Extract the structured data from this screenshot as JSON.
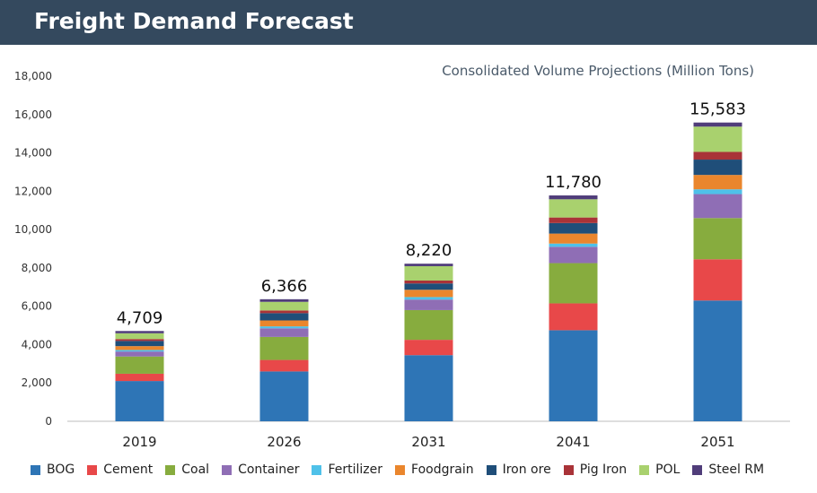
{
  "header": {
    "title": "Freight Demand Forecast"
  },
  "chart_data": {
    "type": "bar",
    "stacked": true,
    "title": "",
    "subtitle": "Consolidated Volume Projections (Million Tons)",
    "xlabel": "",
    "ylabel": "",
    "ylim": [
      0,
      18000
    ],
    "yticks": [
      0,
      2000,
      4000,
      6000,
      8000,
      10000,
      12000,
      14000,
      16000,
      18000
    ],
    "ytick_labels": [
      "0",
      "2,000",
      "4,000",
      "6,000",
      "8,000",
      "10,000",
      "12,000",
      "14,000",
      "16,000",
      "18,000"
    ],
    "grid": false,
    "legend_position": "bottom",
    "categories": [
      "2019",
      "2026",
      "2031",
      "2041",
      "2051"
    ],
    "totals": [
      4709,
      6366,
      8220,
      11780,
      15583
    ],
    "total_labels": [
      "4,709",
      "6,366",
      "8,220",
      "11,780",
      "15,583"
    ],
    "series": [
      {
        "name": "BOG",
        "color": "#2e75b6",
        "values": [
          2100,
          2600,
          3450,
          4750,
          6300
        ]
      },
      {
        "name": "Cement",
        "color": "#e84849",
        "values": [
          380,
          600,
          800,
          1400,
          2150
        ]
      },
      {
        "name": "Coal",
        "color": "#87ac3e",
        "values": [
          900,
          1200,
          1550,
          2100,
          2150
        ]
      },
      {
        "name": "Container",
        "color": "#8f6eb5",
        "values": [
          260,
          450,
          550,
          850,
          1250
        ]
      },
      {
        "name": "Fertilizer",
        "color": "#4fc1e9",
        "values": [
          80,
          100,
          130,
          170,
          250
        ]
      },
      {
        "name": "Foodgrain",
        "color": "#ea862d",
        "values": [
          200,
          310,
          380,
          520,
          750
        ]
      },
      {
        "name": "Iron ore",
        "color": "#1f4e79",
        "values": [
          270,
          380,
          330,
          550,
          800
        ]
      },
      {
        "name": "Pig Iron",
        "color": "#a93338",
        "values": [
          100,
          140,
          150,
          290,
          400
        ]
      },
      {
        "name": "POL",
        "color": "#a9d16e",
        "values": [
          300,
          450,
          750,
          950,
          1320
        ]
      },
      {
        "name": "Steel RM",
        "color": "#503d7a",
        "values": [
          119,
          136,
          130,
          200,
          213
        ]
      }
    ]
  }
}
